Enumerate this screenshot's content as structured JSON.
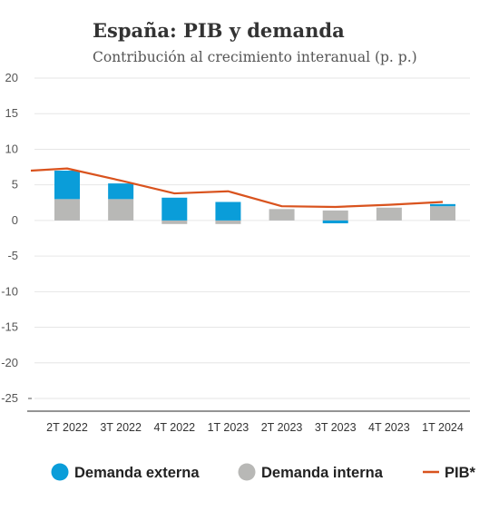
{
  "chart_data": {
    "type": "bar",
    "title": "España: PIB y demanda",
    "subtitle": "Contribución al crecimiento interanual (p. p.)",
    "xlabel": "",
    "ylabel": "",
    "ylim": [
      -25,
      20
    ],
    "yticks": [
      20,
      15,
      10,
      5,
      0,
      -5,
      -10,
      -15,
      -20,
      -25
    ],
    "grid": true,
    "legend_position": "bottom",
    "categories": [
      "2T 2022",
      "3T 2022",
      "4T 2022",
      "1T 2023",
      "2T 2023",
      "3T 2023",
      "4T 2023",
      "1T 2024"
    ],
    "series": [
      {
        "name": "Demanda externa",
        "kind": "bar",
        "color": "#0a9dd9",
        "values": [
          4.0,
          2.2,
          3.2,
          2.6,
          0.0,
          -0.4,
          0.0,
          0.3
        ]
      },
      {
        "name": "Demanda interna",
        "kind": "bar",
        "color": "#b8b8b6",
        "values": [
          3.0,
          3.0,
          -0.5,
          -0.5,
          1.6,
          1.4,
          1.8,
          2.0
        ]
      },
      {
        "name": "PIB*",
        "kind": "line",
        "color": "#d9531e",
        "values": [
          7.3,
          5.6,
          3.8,
          4.1,
          2.0,
          1.9,
          2.2,
          2.6
        ]
      }
    ]
  },
  "colors": {
    "grid": "#e6e6e6",
    "axis": "#555555"
  }
}
